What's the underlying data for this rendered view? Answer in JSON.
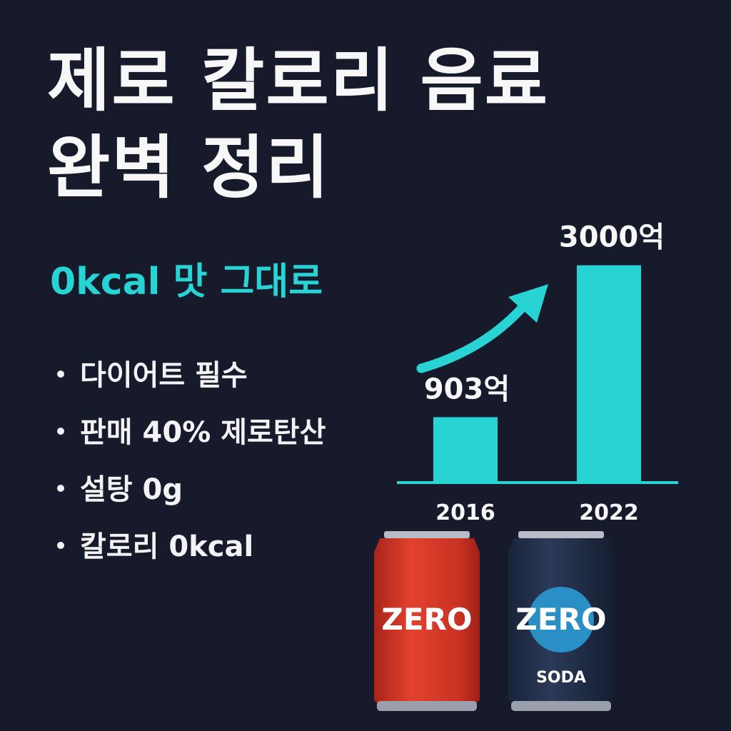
{
  "headline": {
    "line1": "제로 칼로리 음료",
    "line2": "완벽 정리"
  },
  "subtitle": "0kcal 맛 그대로",
  "bullets": [
    "다이어트 필수",
    "판매 40% 제로탄산",
    "설탕 0g",
    "칼로리 0kcal"
  ],
  "cans": [
    {
      "label": "ZERO",
      "sublabel": "",
      "color": "#d93b2b"
    },
    {
      "label": "ZERO",
      "sublabel": "SODA",
      "color": "#22304a"
    }
  ],
  "colors": {
    "background": "#161a2b",
    "accent": "#27d3d3",
    "text": "#f7f7f8",
    "red_can": "#d93b2b",
    "dark_can": "#22304a",
    "badge": "#2a8fc4"
  },
  "icons": [
    "trend-arrow-icon",
    "dot-bullet-icon"
  ],
  "chart_data": {
    "type": "bar",
    "categories": [
      "2016",
      "2022"
    ],
    "values": [
      903,
      3000
    ],
    "value_labels": [
      "903억",
      "3000억"
    ],
    "unit": "억",
    "title": "",
    "xlabel": "",
    "ylabel": "",
    "ylim": [
      0,
      3400
    ],
    "grid": false,
    "legend": "none"
  }
}
